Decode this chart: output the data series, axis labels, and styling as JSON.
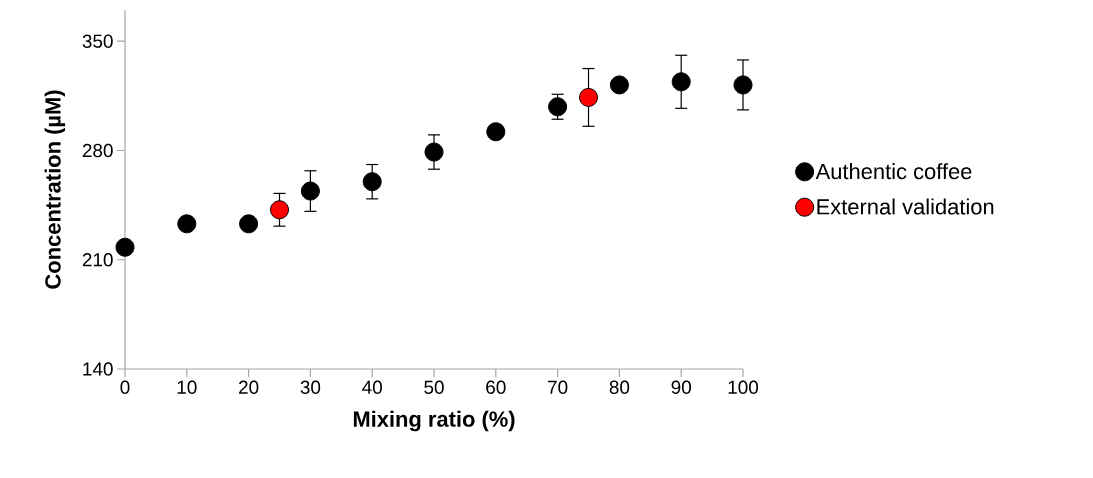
{
  "chart_data": {
    "type": "scatter",
    "xlabel": "Mixing ratio (%)",
    "ylabel": "Concentration (µM)",
    "xlim": [
      0,
      100
    ],
    "xticks": [
      0,
      10,
      20,
      30,
      40,
      50,
      60,
      70,
      80,
      90,
      100
    ],
    "ylim": [
      140,
      370
    ],
    "yticks": [
      140,
      210,
      280,
      350
    ],
    "grid": false,
    "legend": "right",
    "marker": "circle",
    "series": [
      {
        "name": "Authentic coffee",
        "color": "#000000",
        "x": [
          0,
          10,
          20,
          30,
          40,
          50,
          60,
          70,
          80,
          90,
          100
        ],
        "values": [
          218,
          233,
          233,
          254,
          260,
          279,
          292,
          308,
          322,
          324,
          322
        ],
        "errors": [
          2,
          1,
          1,
          13,
          11,
          11,
          1,
          8,
          2,
          17,
          16
        ]
      },
      {
        "name": "External validation",
        "color": "#ff0000",
        "x": [
          25,
          75
        ],
        "values": [
          242,
          314
        ],
        "errors": [
          10.5,
          18.5
        ]
      }
    ]
  }
}
